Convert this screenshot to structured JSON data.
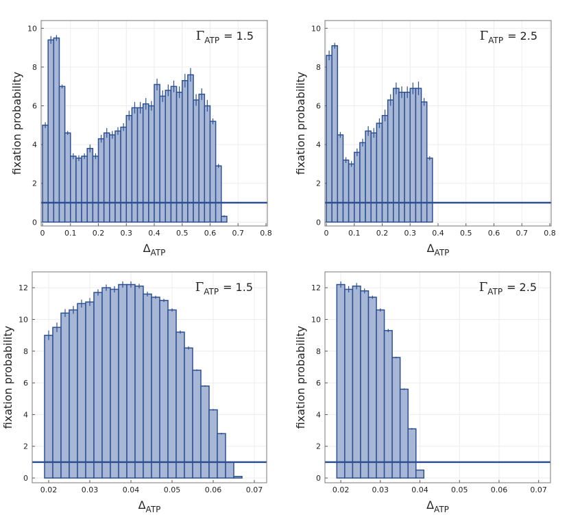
{
  "chart_data": [
    {
      "type": "histogram",
      "ylabel": "fixation probability",
      "xlabel_symbol": "Δ",
      "xlabel_sub": "ATP",
      "annotation_symbol": "Γ",
      "annotation_sub": "ATP",
      "annotation_value": "= 1.5",
      "color": "#a8b7d6",
      "edge_color": "#2b4f91",
      "grid": true,
      "reference_line": 1,
      "xlim": [
        -0.005,
        0.805
      ],
      "ylim": [
        -0.2,
        10.4
      ],
      "xticks": [
        0,
        0.1,
        0.2,
        0.3,
        0.4,
        0.5,
        0.6,
        0.7,
        0.8
      ],
      "yticks": [
        0,
        2,
        4,
        6,
        8,
        10
      ],
      "bins": [
        0,
        0.02,
        0.04,
        0.06,
        0.08,
        0.1,
        0.12,
        0.14,
        0.16,
        0.18,
        0.2,
        0.22,
        0.24,
        0.26,
        0.28,
        0.3,
        0.32,
        0.34,
        0.36,
        0.38,
        0.4,
        0.42,
        0.44,
        0.46,
        0.48,
        0.5,
        0.52,
        0.54,
        0.56,
        0.58,
        0.6,
        0.62,
        0.64,
        0.66,
        0.68,
        0.7,
        0.72,
        0.74,
        0.76,
        0.78,
        0.8
      ],
      "values": [
        5.0,
        9.4,
        9.5,
        7.0,
        4.6,
        3.4,
        3.3,
        3.4,
        3.8,
        3.4,
        4.3,
        4.6,
        4.5,
        4.7,
        4.9,
        5.5,
        5.9,
        5.9,
        6.1,
        6.0,
        7.1,
        6.5,
        6.8,
        7.0,
        6.7,
        7.3,
        7.6,
        6.3,
        6.6,
        6.0,
        5.2,
        2.9,
        0.3,
        0,
        0,
        0,
        0,
        0,
        0,
        0
      ],
      "errors": [
        0.15,
        0.2,
        0.15,
        0.1,
        0.1,
        0.15,
        0.15,
        0.15,
        0.2,
        0.15,
        0.2,
        0.25,
        0.2,
        0.2,
        0.2,
        0.25,
        0.3,
        0.3,
        0.3,
        0.25,
        0.3,
        0.3,
        0.3,
        0.3,
        0.3,
        0.35,
        0.35,
        0.3,
        0.3,
        0.3,
        0.15,
        0.1,
        0.05,
        0,
        0,
        0,
        0,
        0,
        0,
        0
      ]
    },
    {
      "type": "histogram",
      "ylabel": "fixation probability",
      "xlabel_symbol": "Δ",
      "xlabel_sub": "ATP",
      "annotation_symbol": "Γ",
      "annotation_sub": "ATP",
      "annotation_value": "= 2.5",
      "color": "#a8b7d6",
      "edge_color": "#2b4f91",
      "grid": true,
      "reference_line": 1,
      "xlim": [
        -0.005,
        0.805
      ],
      "ylim": [
        -0.2,
        10.4
      ],
      "xticks": [
        0,
        0.1,
        0.2,
        0.3,
        0.4,
        0.5,
        0.6,
        0.7,
        0.8
      ],
      "yticks": [
        0,
        2,
        4,
        6,
        8,
        10
      ],
      "bins": [
        0,
        0.02,
        0.04,
        0.06,
        0.08,
        0.1,
        0.12,
        0.14,
        0.16,
        0.18,
        0.2,
        0.22,
        0.24,
        0.26,
        0.28,
        0.3,
        0.32,
        0.34,
        0.36,
        0.38,
        0.4,
        0.42,
        0.44,
        0.46,
        0.48,
        0.5,
        0.52,
        0.54,
        0.56,
        0.58,
        0.6,
        0.62,
        0.64,
        0.66,
        0.68,
        0.7,
        0.72,
        0.74,
        0.76,
        0.78,
        0.8
      ],
      "values": [
        8.6,
        9.1,
        4.5,
        3.2,
        3.0,
        3.6,
        4.1,
        4.7,
        4.6,
        5.1,
        5.5,
        6.3,
        6.9,
        6.7,
        6.7,
        6.9,
        6.9,
        6.2,
        3.3,
        0,
        0,
        0,
        0,
        0,
        0,
        0,
        0,
        0,
        0,
        0,
        0,
        0,
        0,
        0,
        0,
        0,
        0,
        0,
        0,
        0
      ],
      "errors": [
        0.25,
        0.15,
        0.15,
        0.15,
        0.15,
        0.2,
        0.2,
        0.25,
        0.25,
        0.25,
        0.3,
        0.3,
        0.3,
        0.3,
        0.3,
        0.3,
        0.35,
        0.2,
        0.1,
        0,
        0,
        0,
        0,
        0,
        0,
        0,
        0,
        0,
        0,
        0,
        0,
        0,
        0,
        0,
        0,
        0,
        0,
        0,
        0,
        0
      ]
    },
    {
      "type": "histogram",
      "ylabel": "fixation probability",
      "xlabel_symbol": "Δ",
      "xlabel_sub": "ATP",
      "annotation_symbol": "Γ",
      "annotation_sub": "ATP",
      "annotation_value": "= 1.5",
      "color": "#a8b7d6",
      "edge_color": "#2b4f91",
      "grid": true,
      "reference_line": 1,
      "xlim": [
        0.016,
        0.073
      ],
      "ylim": [
        -0.3,
        13
      ],
      "xticks": [
        0.02,
        0.03,
        0.04,
        0.05,
        0.06,
        0.07
      ],
      "yticks": [
        0,
        2,
        4,
        6,
        8,
        10,
        12
      ],
      "bins": [
        0.019,
        0.021,
        0.023,
        0.025,
        0.027,
        0.029,
        0.031,
        0.033,
        0.035,
        0.037,
        0.039,
        0.041,
        0.043,
        0.045,
        0.047,
        0.049,
        0.051,
        0.053,
        0.055,
        0.057,
        0.059,
        0.061,
        0.063,
        0.065,
        0.067,
        0.069
      ],
      "values": [
        9.0,
        9.5,
        10.4,
        10.6,
        11.0,
        11.1,
        11.7,
        12.0,
        11.9,
        12.2,
        12.2,
        12.1,
        11.6,
        11.4,
        11.2,
        10.6,
        9.2,
        8.2,
        6.8,
        5.8,
        4.3,
        2.8,
        1.0,
        0.1,
        0
      ],
      "errors": [
        0.3,
        0.3,
        0.25,
        0.25,
        0.25,
        0.25,
        0.2,
        0.2,
        0.2,
        0.2,
        0.2,
        0.15,
        0.15,
        0.1,
        0.1,
        0.1,
        0.1,
        0.1,
        0.05,
        0.05,
        0.05,
        0.05,
        0.05,
        0.02,
        0
      ]
    },
    {
      "type": "histogram",
      "ylabel": "fixation probability",
      "xlabel_symbol": "Δ",
      "xlabel_sub": "ATP",
      "annotation_symbol": "Γ",
      "annotation_sub": "ATP",
      "annotation_value": "= 2.5",
      "color": "#a8b7d6",
      "edge_color": "#2b4f91",
      "grid": true,
      "reference_line": 1,
      "xlim": [
        0.016,
        0.073
      ],
      "ylim": [
        -0.3,
        13
      ],
      "xticks": [
        0.02,
        0.03,
        0.04,
        0.05,
        0.06,
        0.07
      ],
      "yticks": [
        0,
        2,
        4,
        6,
        8,
        10,
        12
      ],
      "bins": [
        0.019,
        0.021,
        0.023,
        0.025,
        0.027,
        0.029,
        0.031,
        0.033,
        0.035,
        0.037,
        0.039,
        0.041,
        0.043,
        0.045,
        0.047,
        0.049,
        0.051,
        0.053,
        0.055,
        0.057,
        0.059,
        0.061,
        0.063,
        0.065,
        0.067,
        0.069,
        0.071
      ],
      "values": [
        12.2,
        11.9,
        12.1,
        11.8,
        11.4,
        10.6,
        9.3,
        7.6,
        5.6,
        3.1,
        0.5,
        0,
        0,
        0,
        0,
        0,
        0,
        0,
        0,
        0,
        0,
        0,
        0,
        0,
        0,
        0
      ],
      "errors": [
        0.2,
        0.2,
        0.2,
        0.15,
        0.1,
        0.1,
        0.1,
        0.05,
        0.05,
        0.05,
        0.02,
        0,
        0,
        0,
        0,
        0,
        0,
        0,
        0,
        0,
        0,
        0,
        0,
        0,
        0,
        0
      ]
    }
  ]
}
